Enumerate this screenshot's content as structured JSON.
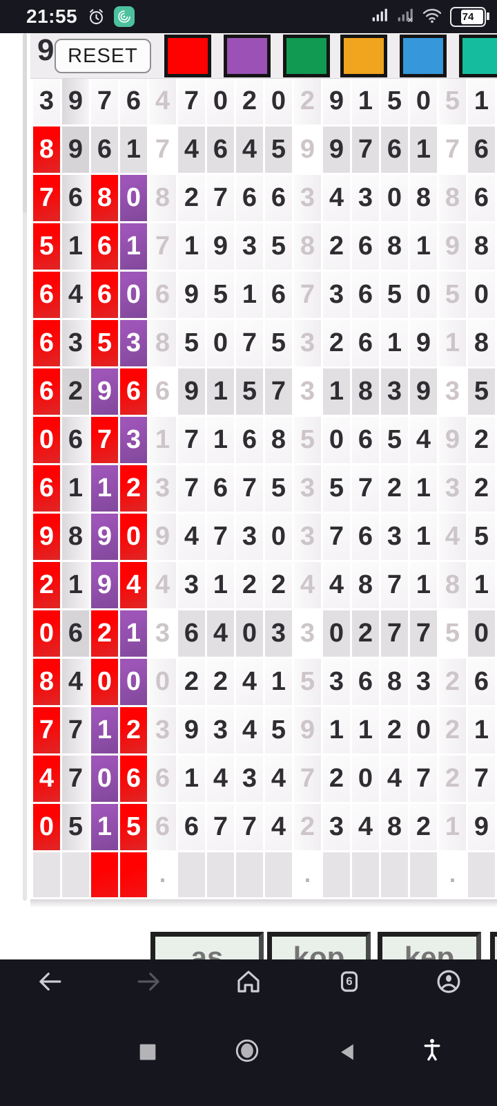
{
  "status_bar": {
    "time": "21:55",
    "battery_percent": "74"
  },
  "toolbar": {
    "reset_label": "RESET",
    "partial_digit": "9",
    "palette": [
      {
        "name": "red",
        "color": "#fe0101"
      },
      {
        "name": "purple",
        "color": "#9b51b5"
      },
      {
        "name": "green",
        "color": "#119a52"
      },
      {
        "name": "orange",
        "color": "#f1a41e"
      },
      {
        "name": "blue",
        "color": "#3697da"
      },
      {
        "name": "teal",
        "color": "#15bd9e"
      }
    ]
  },
  "grid": {
    "sep_columns": [
      4,
      9,
      14
    ],
    "rows": [
      {
        "shade": "light",
        "digits": [
          "3",
          "9",
          "7",
          "6",
          "4",
          "7",
          "0",
          "2",
          "0",
          "2",
          "9",
          "1",
          "5",
          "0",
          "5",
          "1"
        ],
        "col_styles": {}
      },
      {
        "shade": "dark",
        "digits": [
          "8",
          "9",
          "6",
          "1",
          "7",
          "4",
          "6",
          "4",
          "5",
          "9",
          "9",
          "7",
          "6",
          "1",
          "7",
          "6"
        ],
        "col_styles": {
          "0": "red"
        }
      },
      {
        "shade": "light",
        "digits": [
          "7",
          "6",
          "8",
          "0",
          "8",
          "2",
          "7",
          "6",
          "6",
          "3",
          "4",
          "3",
          "0",
          "8",
          "8",
          "6"
        ],
        "col_styles": {
          "0": "red",
          "2": "red",
          "3": "purple"
        }
      },
      {
        "shade": "light",
        "digits": [
          "5",
          "1",
          "6",
          "1",
          "7",
          "1",
          "9",
          "3",
          "5",
          "8",
          "2",
          "6",
          "8",
          "1",
          "9",
          "8"
        ],
        "col_styles": {
          "0": "red",
          "2": "red",
          "3": "purple"
        }
      },
      {
        "shade": "light",
        "digits": [
          "6",
          "4",
          "6",
          "0",
          "6",
          "9",
          "5",
          "1",
          "6",
          "7",
          "3",
          "6",
          "5",
          "0",
          "5",
          "0"
        ],
        "col_styles": {
          "0": "red",
          "2": "red",
          "3": "purple"
        }
      },
      {
        "shade": "light",
        "digits": [
          "6",
          "3",
          "5",
          "3",
          "8",
          "5",
          "0",
          "7",
          "5",
          "3",
          "2",
          "6",
          "1",
          "9",
          "1",
          "8"
        ],
        "col_styles": {
          "0": "red",
          "2": "red",
          "3": "purple"
        }
      },
      {
        "shade": "dark",
        "digits": [
          "6",
          "2",
          "9",
          "6",
          "6",
          "9",
          "1",
          "5",
          "7",
          "3",
          "1",
          "8",
          "3",
          "9",
          "3",
          "5"
        ],
        "col_styles": {
          "0": "red",
          "2": "purple",
          "3": "red"
        }
      },
      {
        "shade": "light",
        "digits": [
          "0",
          "6",
          "7",
          "3",
          "1",
          "7",
          "1",
          "6",
          "8",
          "5",
          "0",
          "6",
          "5",
          "4",
          "9",
          "2"
        ],
        "col_styles": {
          "0": "red",
          "2": "red",
          "3": "purple"
        }
      },
      {
        "shade": "light",
        "digits": [
          "6",
          "1",
          "1",
          "2",
          "3",
          "7",
          "6",
          "7",
          "5",
          "3",
          "5",
          "7",
          "2",
          "1",
          "3",
          "2"
        ],
        "col_styles": {
          "0": "red",
          "2": "purple",
          "3": "red"
        }
      },
      {
        "shade": "light",
        "digits": [
          "9",
          "8",
          "9",
          "0",
          "9",
          "4",
          "7",
          "3",
          "0",
          "3",
          "7",
          "6",
          "3",
          "1",
          "4",
          "5"
        ],
        "col_styles": {
          "0": "red",
          "2": "purple",
          "3": "red"
        }
      },
      {
        "shade": "light",
        "digits": [
          "2",
          "1",
          "9",
          "4",
          "4",
          "3",
          "1",
          "2",
          "2",
          "4",
          "4",
          "8",
          "7",
          "1",
          "8",
          "1"
        ],
        "col_styles": {
          "0": "red",
          "2": "purple",
          "3": "red"
        }
      },
      {
        "shade": "dark",
        "digits": [
          "0",
          "6",
          "2",
          "1",
          "3",
          "6",
          "4",
          "0",
          "3",
          "3",
          "0",
          "2",
          "7",
          "7",
          "5",
          "0"
        ],
        "col_styles": {
          "0": "red",
          "2": "red",
          "3": "purple"
        }
      },
      {
        "shade": "light",
        "digits": [
          "8",
          "4",
          "0",
          "0",
          "0",
          "2",
          "2",
          "4",
          "1",
          "5",
          "3",
          "6",
          "8",
          "3",
          "2",
          "6"
        ],
        "col_styles": {
          "0": "red",
          "2": "red",
          "3": "purple"
        }
      },
      {
        "shade": "light",
        "digits": [
          "7",
          "7",
          "1",
          "2",
          "3",
          "9",
          "3",
          "4",
          "5",
          "9",
          "1",
          "1",
          "2",
          "0",
          "2",
          "1"
        ],
        "col_styles": {
          "0": "red",
          "2": "purple",
          "3": "red"
        }
      },
      {
        "shade": "light",
        "digits": [
          "4",
          "7",
          "0",
          "6",
          "6",
          "1",
          "4",
          "3",
          "4",
          "7",
          "2",
          "0",
          "4",
          "7",
          "2",
          "7"
        ],
        "col_styles": {
          "0": "red",
          "2": "purple",
          "3": "red"
        }
      },
      {
        "shade": "light",
        "digits": [
          "0",
          "5",
          "1",
          "5",
          "6",
          "6",
          "7",
          "7",
          "4",
          "2",
          "3",
          "4",
          "8",
          "2",
          "1",
          "9"
        ],
        "col_styles": {
          "0": "red",
          "2": "purple",
          "3": "red"
        }
      }
    ],
    "footer": {
      "dot_char": ".",
      "styles": [
        "gray",
        "gray",
        "red",
        "red",
        "dot",
        "gray",
        "gray",
        "gray",
        "gray",
        "dot",
        "gray",
        "gray",
        "gray",
        "gray",
        "dot",
        "gray"
      ]
    }
  },
  "bottom_buttons": {
    "labels": [
      "as",
      "kop",
      "kep",
      ""
    ]
  },
  "browser_nav": {
    "tab_count": "6"
  },
  "icons": {
    "status_bar": [
      "alarm-icon",
      "app-badge-icon",
      "signal-icon",
      "signal-x-icon",
      "wifi-icon",
      "battery-icon"
    ],
    "browser_nav": [
      "back-icon",
      "forward-icon",
      "home-icon",
      "tabs-icon",
      "profile-icon"
    ],
    "system_nav": [
      "recents-square-icon",
      "home-circle-icon",
      "back-triangle-icon",
      "accessibility-icon"
    ]
  }
}
